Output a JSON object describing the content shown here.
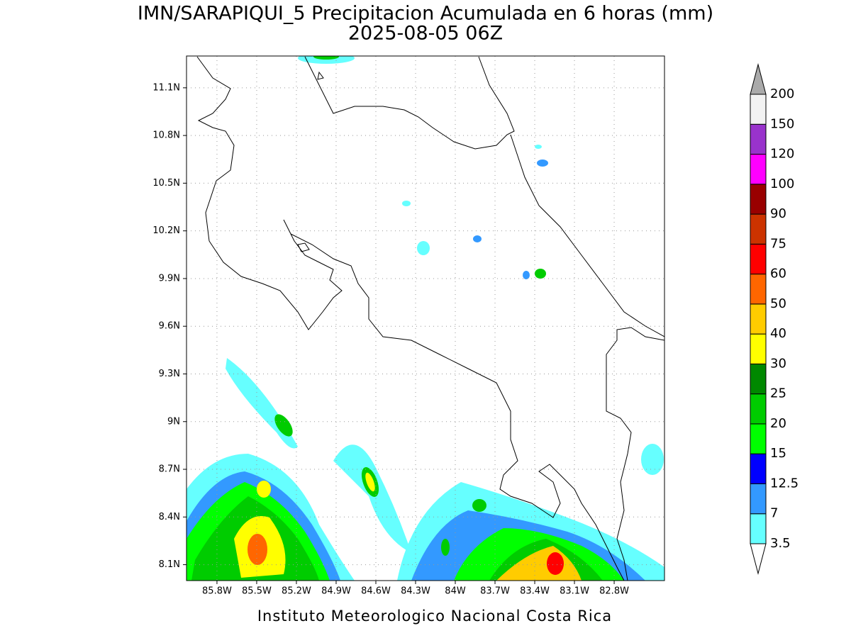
{
  "map": {
    "title": "IMN/SARAPIQUI_5 Precipitacion Acumulada en 6 horas (mm)",
    "subtitle": "2025-08-05 06Z",
    "credit": "Instituto Meteorologico Nacional Costa Rica",
    "lonlim": [
      -86.03,
      -82.42
    ],
    "latlim": [
      8.0,
      11.3
    ],
    "lon_ticks": [
      {
        "value": -85.8,
        "label": "85.8W"
      },
      {
        "value": -85.5,
        "label": "85.5W"
      },
      {
        "value": -85.2,
        "label": "85.2W"
      },
      {
        "value": -84.9,
        "label": "84.9W"
      },
      {
        "value": -84.6,
        "label": "84.6W"
      },
      {
        "value": -84.3,
        "label": "84.3W"
      },
      {
        "value": -84.0,
        "label": "84W"
      },
      {
        "value": -83.7,
        "label": "83.7W"
      },
      {
        "value": -83.4,
        "label": "83.4W"
      },
      {
        "value": -83.1,
        "label": "83.1W"
      },
      {
        "value": -82.8,
        "label": "82.8W"
      }
    ],
    "lat_ticks": [
      {
        "value": 8.1,
        "label": "8.1N"
      },
      {
        "value": 8.4,
        "label": "8.4N"
      },
      {
        "value": 8.7,
        "label": "8.7N"
      },
      {
        "value": 9.0,
        "label": "9N"
      },
      {
        "value": 9.3,
        "label": "9.3N"
      },
      {
        "value": 9.6,
        "label": "9.6N"
      },
      {
        "value": 9.9,
        "label": "9.9N"
      },
      {
        "value": 10.2,
        "label": "10.2N"
      },
      {
        "value": 10.5,
        "label": "10.5N"
      },
      {
        "value": 10.8,
        "label": "10.8N"
      },
      {
        "value": 11.1,
        "label": "11.1N"
      }
    ],
    "grid": true,
    "colorbar": {
      "levels": [
        3.5,
        7,
        12.5,
        15,
        20,
        25,
        30,
        40,
        50,
        60,
        75,
        90,
        100,
        120,
        150,
        200
      ],
      "colors": [
        "#66ffff",
        "#3399ff",
        "#0000ff",
        "#00ff00",
        "#00cc00",
        "#008800",
        "#ffff00",
        "#ffcc00",
        "#ff6600",
        "#ff0000",
        "#cc3300",
        "#990000",
        "#ff00ff",
        "#9933cc",
        "#f2f2f2"
      ],
      "under_color": "#ffffff",
      "over_color": "#aaaaaa"
    }
  }
}
